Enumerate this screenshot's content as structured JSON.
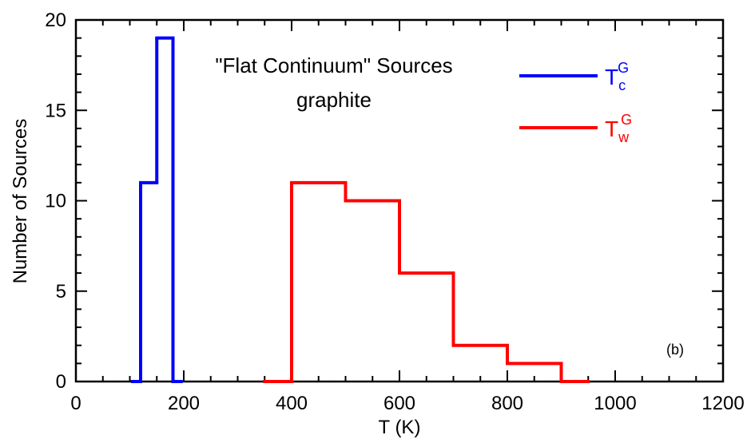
{
  "chart_data": {
    "type": "step-histogram",
    "title_lines": [
      "\"Flat Continuum\" Sources",
      "graphite"
    ],
    "x_label": "T (K)",
    "y_label": "Number of Sources",
    "annotation": "(b)",
    "xlim": [
      0,
      1200
    ],
    "xticks": [
      0,
      200,
      400,
      600,
      800,
      1000,
      1200
    ],
    "ylim": [
      0,
      20
    ],
    "yticks": [
      0,
      5,
      10,
      15,
      20
    ],
    "x_minor_per_major": 4,
    "y_minor_per_major": 5,
    "legend": "upper right",
    "series": [
      {
        "name": "T",
        "subscript": "c",
        "superscript": "G",
        "color": "#0000ff",
        "bins": [
          105,
          120,
          150,
          180,
          195
        ],
        "counts": [
          0,
          11,
          19,
          0
        ]
      },
      {
        "name": "T",
        "subscript": "w",
        "superscript": "G",
        "color": "#ff0000",
        "bins": [
          350,
          400,
          500,
          600,
          700,
          800,
          900,
          950
        ],
        "counts": [
          0,
          11,
          10,
          6,
          2,
          1,
          0
        ]
      }
    ]
  }
}
